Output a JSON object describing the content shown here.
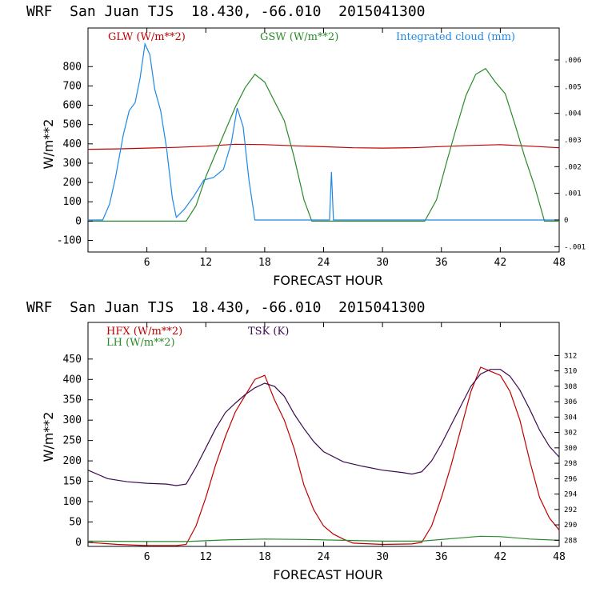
{
  "colors": {
    "glw": "#c00000",
    "gsw": "#2a8a2a",
    "cloud": "#1e88e5",
    "hfx": "#c00000",
    "lh": "#2a8a2a",
    "tsk": "#3b0a4f"
  },
  "chart_data": [
    {
      "type": "line",
      "title": "WRF  San Juan TJS  18.430, -66.010  2015041300",
      "xlabel": "FORECAST HOUR",
      "ylabel": "W/m**2",
      "xlim": [
        0,
        48
      ],
      "ylim": [
        -160,
        1000
      ],
      "x_ticks": [
        6,
        12,
        18,
        24,
        30,
        36,
        42,
        48
      ],
      "y_ticks": [
        -100,
        0,
        100,
        200,
        300,
        400,
        500,
        600,
        700,
        800
      ],
      "y2lim": [
        -0.0012,
        0.0072
      ],
      "y2_ticks": [
        -0.001,
        0,
        0.001,
        0.002,
        0.003,
        0.004,
        0.005,
        0.006
      ],
      "y2_tick_labels": [
        "-.001",
        "0",
        ".001",
        ".002",
        ".003",
        ".004",
        ".005",
        ".006"
      ],
      "series": [
        {
          "name": "GLW (W/m**2)",
          "label": "GLW (W/m**2)",
          "color_key": "glw",
          "axis": "left",
          "points": [
            [
              0,
              372
            ],
            [
              3,
              374
            ],
            [
              6,
              378
            ],
            [
              9,
              382
            ],
            [
              12,
              388
            ],
            [
              15,
              398
            ],
            [
              18,
              396
            ],
            [
              21,
              390
            ],
            [
              24,
              385
            ],
            [
              27,
              380
            ],
            [
              30,
              378
            ],
            [
              33,
              380
            ],
            [
              36,
              386
            ],
            [
              39,
              392
            ],
            [
              42,
              396
            ],
            [
              45,
              388
            ],
            [
              48,
              380
            ]
          ]
        },
        {
          "name": "GSW (W/m**2)",
          "label": "GSW (W/m**2)",
          "color_key": "gsw",
          "axis": "left",
          "points": [
            [
              0,
              0
            ],
            [
              10,
              0
            ],
            [
              11,
              80
            ],
            [
              12,
              230
            ],
            [
              13,
              350
            ],
            [
              14,
              470
            ],
            [
              15,
              590
            ],
            [
              16,
              690
            ],
            [
              17,
              760
            ],
            [
              18,
              720
            ],
            [
              19,
              620
            ],
            [
              20,
              520
            ],
            [
              21,
              330
            ],
            [
              22,
              110
            ],
            [
              22.8,
              0
            ],
            [
              34.3,
              0
            ],
            [
              35.5,
              110
            ],
            [
              36.5,
              300
            ],
            [
              37.5,
              480
            ],
            [
              38.5,
              650
            ],
            [
              39.5,
              760
            ],
            [
              40.5,
              790
            ],
            [
              41.5,
              720
            ],
            [
              42.5,
              660
            ],
            [
              43.5,
              500
            ],
            [
              44.5,
              330
            ],
            [
              45.5,
              180
            ],
            [
              46.5,
              0
            ],
            [
              48,
              0
            ]
          ]
        },
        {
          "name": "Integrated cloud (mm)",
          "label": "Integrated cloud (mm)",
          "color_key": "cloud",
          "axis": "right",
          "points": [
            [
              0,
              0
            ],
            [
              1.5,
              0
            ],
            [
              2.2,
              0.0006
            ],
            [
              2.8,
              0.0016
            ],
            [
              3.2,
              0.0024
            ],
            [
              3.6,
              0.0032
            ],
            [
              4.2,
              0.0041
            ],
            [
              4.8,
              0.0044
            ],
            [
              5.3,
              0.0053
            ],
            [
              5.8,
              0.0066
            ],
            [
              6.3,
              0.0062
            ],
            [
              6.8,
              0.0049
            ],
            [
              7.4,
              0.0041
            ],
            [
              8.0,
              0.0027
            ],
            [
              8.6,
              0.0008
            ],
            [
              9.0,
              0.0001
            ],
            [
              9.8,
              0.0004
            ],
            [
              10.8,
              0.0009
            ],
            [
              11.8,
              0.0015
            ],
            [
              12.8,
              0.0016
            ],
            [
              13.8,
              0.0019
            ],
            [
              14.6,
              0.0029
            ],
            [
              15.2,
              0.0042
            ],
            [
              15.8,
              0.0035
            ],
            [
              16.4,
              0.0015
            ],
            [
              17.0,
              0
            ],
            [
              24.6,
              0
            ],
            [
              24.8,
              0.0018
            ],
            [
              25.0,
              0
            ],
            [
              48,
              0
            ]
          ]
        }
      ]
    },
    {
      "type": "line",
      "title": "WRF  San Juan TJS  18.430, -66.010  2015041300",
      "xlabel": "FORECAST HOUR",
      "ylabel": "W/m**2",
      "xlim": [
        0,
        48
      ],
      "ylim": [
        -10,
        540
      ],
      "x_ticks": [
        6,
        12,
        18,
        24,
        30,
        36,
        42,
        48
      ],
      "y_ticks": [
        0,
        50,
        100,
        150,
        200,
        250,
        300,
        350,
        400,
        450
      ],
      "y2lim": [
        287.2,
        316.3
      ],
      "y2_ticks": [
        288,
        290,
        292,
        294,
        296,
        298,
        300,
        302,
        304,
        306,
        308,
        310,
        312
      ],
      "y2_tick_labels": [
        "288",
        "290",
        "292",
        "294",
        "296",
        "298",
        "300",
        "302",
        "304",
        "306",
        "308",
        "310",
        "312"
      ],
      "series": [
        {
          "name": "HFX (W/m**2)",
          "label": "HFX (W/m**2)",
          "color_key": "hfx",
          "axis": "left",
          "points": [
            [
              0,
              0
            ],
            [
              3,
              -5
            ],
            [
              6,
              -8
            ],
            [
              9,
              -8
            ],
            [
              10,
              -5
            ],
            [
              11,
              40
            ],
            [
              12,
              110
            ],
            [
              13,
              190
            ],
            [
              14,
              260
            ],
            [
              15,
              320
            ],
            [
              16,
              360
            ],
            [
              17,
              400
            ],
            [
              18,
              410
            ],
            [
              19,
              350
            ],
            [
              20,
              300
            ],
            [
              21,
              230
            ],
            [
              22,
              140
            ],
            [
              23,
              80
            ],
            [
              24,
              40
            ],
            [
              25,
              20
            ],
            [
              26,
              8
            ],
            [
              27,
              -2
            ],
            [
              30,
              -5
            ],
            [
              33,
              -4
            ],
            [
              34,
              0
            ],
            [
              35,
              40
            ],
            [
              36,
              110
            ],
            [
              37,
              190
            ],
            [
              38,
              280
            ],
            [
              39,
              370
            ],
            [
              40,
              430
            ],
            [
              41,
              420
            ],
            [
              42,
              410
            ],
            [
              43,
              370
            ],
            [
              44,
              300
            ],
            [
              45,
              200
            ],
            [
              46,
              110
            ],
            [
              47,
              60
            ],
            [
              48,
              30
            ]
          ]
        },
        {
          "name": "LH (W/m**2)",
          "label": "LH (W/m**2)",
          "color_key": "lh",
          "axis": "left",
          "points": [
            [
              0,
              3
            ],
            [
              6,
              2
            ],
            [
              10,
              2
            ],
            [
              14,
              6
            ],
            [
              18,
              8
            ],
            [
              22,
              7
            ],
            [
              26,
              5
            ],
            [
              30,
              3
            ],
            [
              34,
              3
            ],
            [
              38,
              11
            ],
            [
              40,
              15
            ],
            [
              42,
              14
            ],
            [
              45,
              8
            ],
            [
              48,
              5
            ]
          ]
        },
        {
          "name": "TSK (K)",
          "label": "TSK (K)",
          "color_key": "tsk",
          "axis": "right",
          "points": [
            [
              0,
              297.1
            ],
            [
              2,
              296.0
            ],
            [
              4,
              295.6
            ],
            [
              6,
              295.4
            ],
            [
              8,
              295.3
            ],
            [
              9,
              295.1
            ],
            [
              10,
              295.3
            ],
            [
              11,
              297.5
            ],
            [
              12,
              300.0
            ],
            [
              13,
              302.5
            ],
            [
              14,
              304.6
            ],
            [
              15,
              305.8
            ],
            [
              16,
              306.9
            ],
            [
              17,
              307.8
            ],
            [
              18,
              308.4
            ],
            [
              19,
              308.0
            ],
            [
              20,
              306.7
            ],
            [
              21,
              304.4
            ],
            [
              22,
              302.5
            ],
            [
              23,
              300.8
            ],
            [
              24,
              299.5
            ],
            [
              26,
              298.2
            ],
            [
              28,
              297.6
            ],
            [
              30,
              297.1
            ],
            [
              32,
              296.8
            ],
            [
              33,
              296.6
            ],
            [
              34,
              296.9
            ],
            [
              35,
              298.3
            ],
            [
              36,
              300.5
            ],
            [
              37,
              303.0
            ],
            [
              38,
              305.5
            ],
            [
              39,
              308.0
            ],
            [
              40,
              309.6
            ],
            [
              41,
              310.2
            ],
            [
              42,
              310.2
            ],
            [
              43,
              309.3
            ],
            [
              44,
              307.5
            ],
            [
              45,
              305.0
            ],
            [
              46,
              302.3
            ],
            [
              47,
              300.2
            ],
            [
              48,
              298.8
            ]
          ]
        }
      ]
    }
  ]
}
